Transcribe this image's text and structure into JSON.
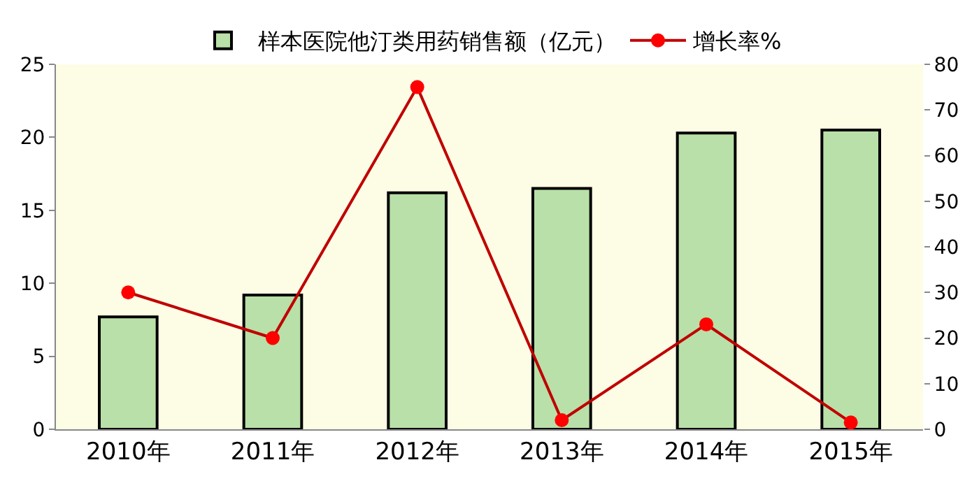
{
  "chart_data": {
    "type": "bar",
    "categories": [
      "2010年",
      "2011年",
      "2012年",
      "2013年",
      "2014年",
      "2015年"
    ],
    "series": [
      {
        "name": "样本医院他汀类用药销售额（亿元）",
        "color": "#b8e0a8",
        "values": [
          7.7,
          9.2,
          16.2,
          16.5,
          20.3,
          20.5
        ]
      },
      {
        "name": "增长率%",
        "type": "line",
        "axis": "y2",
        "color": "#c00000",
        "marker": "circle",
        "values": [
          30,
          20,
          75,
          2,
          23,
          1.5
        ]
      }
    ],
    "ylim": [
      0,
      25
    ],
    "yticks": [
      0,
      5,
      10,
      15,
      20,
      25
    ],
    "y2lim": [
      0,
      80
    ],
    "y2ticks": [
      0,
      10,
      20,
      30,
      40,
      50,
      60,
      70,
      80
    ],
    "grid": false,
    "legend": "top"
  }
}
